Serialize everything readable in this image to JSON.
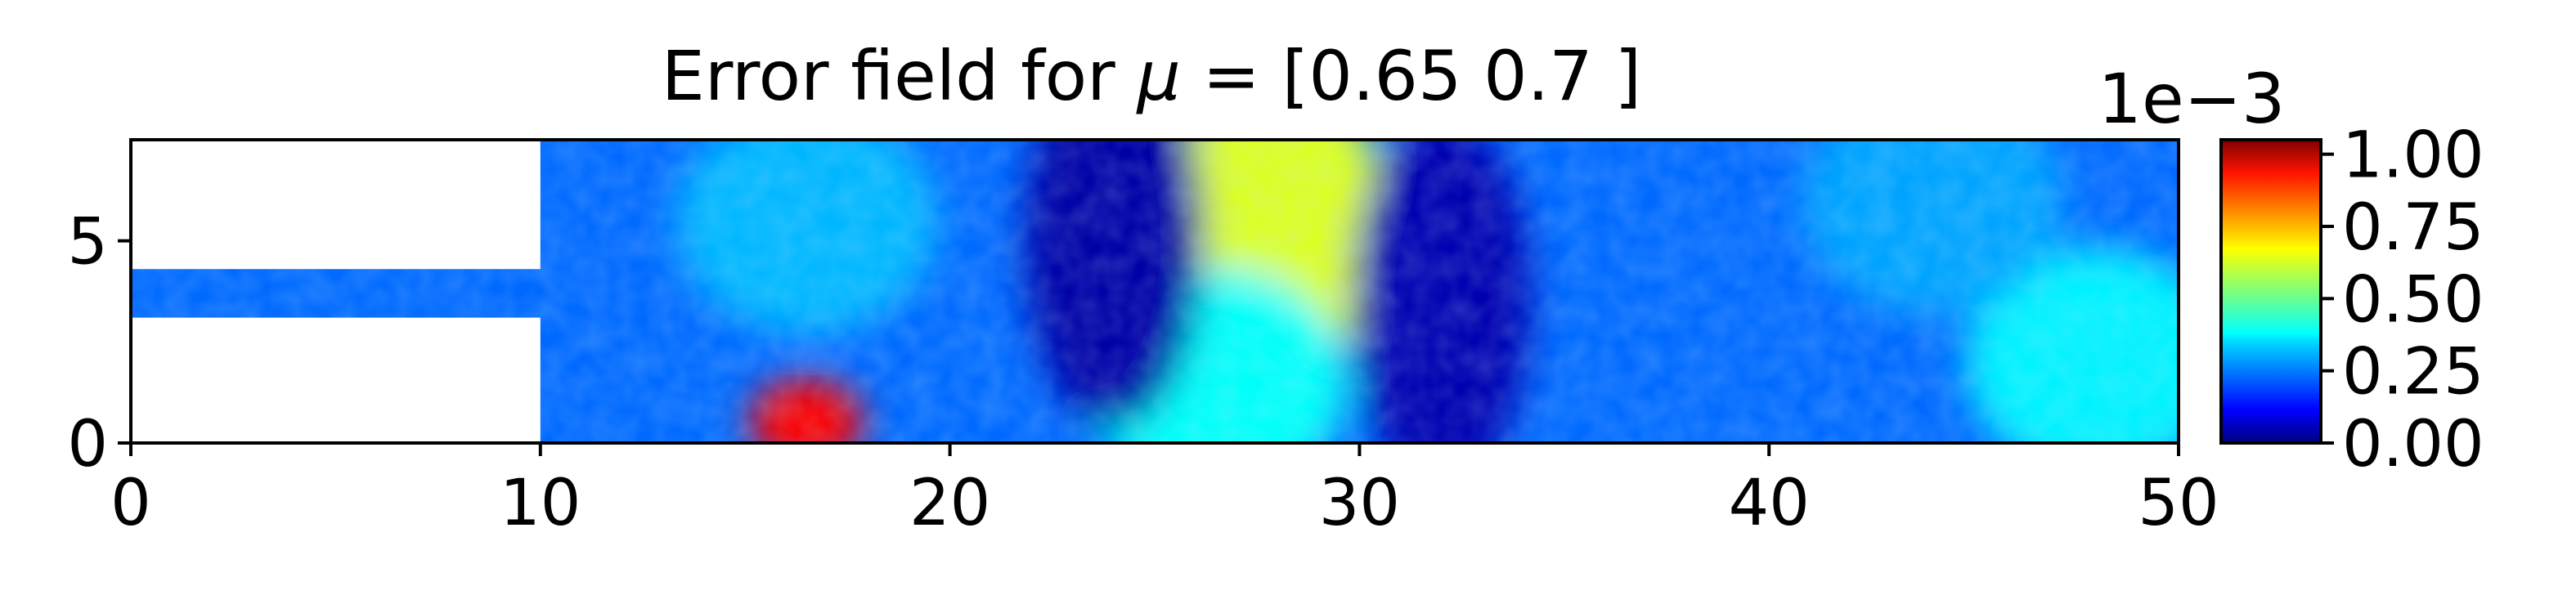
{
  "chart_data": {
    "type": "heatmap",
    "title_prefix": "Error field for ",
    "title_symbol": "μ",
    "title_suffix": " = [0.65 0.7 ]",
    "xlim": [
      0,
      50
    ],
    "ylim": [
      0,
      7.5
    ],
    "x_ticks": [
      0,
      10,
      20,
      30,
      40,
      50
    ],
    "x_tick_labels": [
      "0",
      "10",
      "20",
      "30",
      "40",
      "50"
    ],
    "y_ticks": [
      0,
      5
    ],
    "y_tick_labels": [
      "0",
      "5"
    ],
    "geometry": {
      "inlet_channel": {
        "x": [
          0,
          10
        ],
        "y": [
          3.1,
          4.3
        ]
      },
      "main_chamber": {
        "x": [
          10,
          50
        ],
        "y": [
          0,
          7.5
        ]
      }
    },
    "colormap": "jet",
    "colorbar": {
      "range": [
        0,
        1.05
      ],
      "scale_label": "1e−3",
      "ticks": [
        0.0,
        0.25,
        0.5,
        0.75,
        1.0
      ],
      "tick_labels": [
        "0.00",
        "0.25",
        "0.50",
        "0.75",
        "1.00"
      ]
    },
    "field_features": [
      {
        "kind": "hotspot",
        "x": 16.5,
        "y": 0.5,
        "value": 0.92
      },
      {
        "kind": "high-band",
        "x": 28.0,
        "y": 5.5,
        "value": 0.62
      },
      {
        "kind": "moderate",
        "x": 26.5,
        "y": 1.5,
        "value": 0.4
      },
      {
        "kind": "low-band",
        "x": 24.0,
        "y": 5.0,
        "value": 0.04
      },
      {
        "kind": "low-band",
        "x": 32.0,
        "y": 3.5,
        "value": 0.05
      },
      {
        "kind": "moderate",
        "x": 16.5,
        "y": 5.5,
        "value": 0.32
      },
      {
        "kind": "moderate",
        "x": 48.0,
        "y": 2.0,
        "value": 0.38
      },
      {
        "kind": "moderate",
        "x": 44.0,
        "y": 6.0,
        "value": 0.3
      }
    ]
  }
}
